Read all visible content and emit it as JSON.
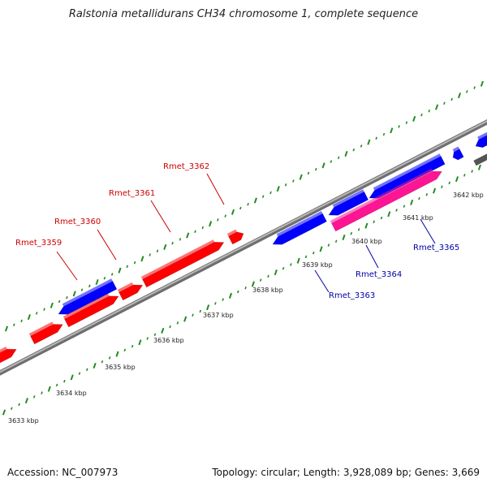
{
  "title": "Ralstonia metallidurans CH34 chromosome 1, complete sequence",
  "accession": "Accession: NC_007973",
  "summary": "Topology: circular; Length: 3,928,089 bp; Genes: 3,669",
  "colors": {
    "forward_gene": "#ff0000",
    "reverse_gene": "#0000ff",
    "highlight_gene": "#ff1493",
    "backbone": "#808080",
    "tick": "#228b22",
    "forward_label": "#cc0000",
    "reverse_label": "#0000aa"
  },
  "kbp_labels": [
    "3633 kbp",
    "3634 kbp",
    "3635 kbp",
    "3636 kbp",
    "3637 kbp",
    "3638 kbp",
    "3639 kbp",
    "3640 kbp",
    "3641 kbp",
    "3642 kbp"
  ],
  "gene_labels": {
    "forward": [
      "Rmet_3359",
      "Rmet_3360",
      "Rmet_3361",
      "Rmet_3362"
    ],
    "reverse": [
      "Rmet_3363",
      "Rmet_3364",
      "Rmet_3365"
    ]
  }
}
